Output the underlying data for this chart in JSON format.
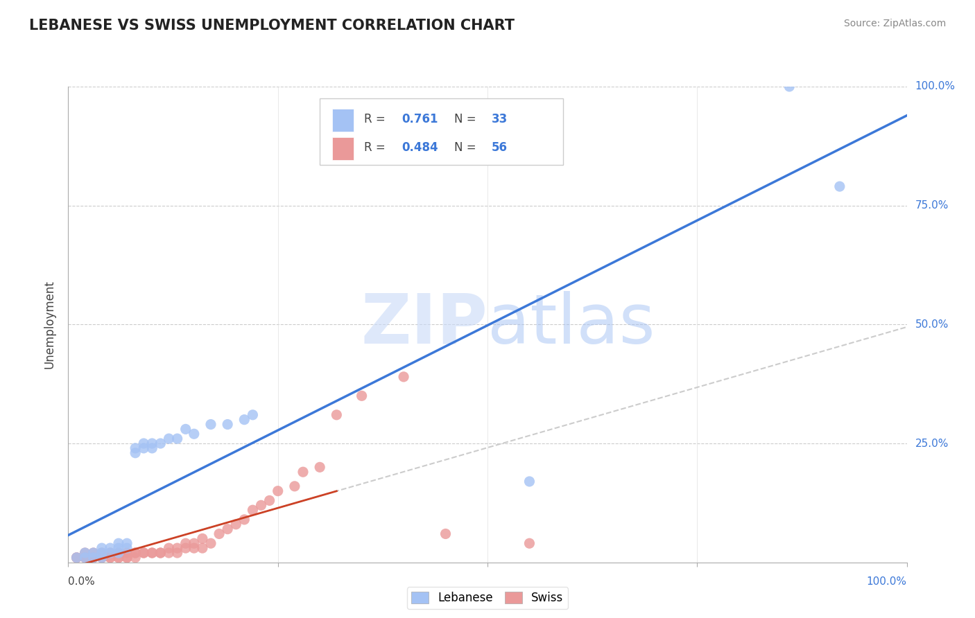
{
  "title": "LEBANESE VS SWISS UNEMPLOYMENT CORRELATION CHART",
  "source_text": "Source: ZipAtlas.com",
  "ylabel": "Unemployment",
  "xlim": [
    0,
    1
  ],
  "ylim": [
    0,
    1
  ],
  "lebanese_R": 0.761,
  "lebanese_N": 33,
  "swiss_R": 0.484,
  "swiss_N": 56,
  "blue_scatter_color": "#a4c2f4",
  "pink_scatter_color": "#ea9999",
  "blue_line_color": "#3c78d8",
  "pink_line_color": "#cc4125",
  "gray_dashed_color": "#cccccc",
  "watermark_text": "ZIPatlas",
  "watermark_color": "#c9daf8",
  "background_color": "#ffffff",
  "grid_color": "#cccccc",
  "legend_R_N_color": "#3c78d8",
  "lebanese_x": [
    0.01,
    0.02,
    0.02,
    0.03,
    0.03,
    0.04,
    0.04,
    0.04,
    0.05,
    0.05,
    0.06,
    0.06,
    0.06,
    0.07,
    0.07,
    0.08,
    0.08,
    0.09,
    0.09,
    0.1,
    0.1,
    0.11,
    0.12,
    0.13,
    0.14,
    0.15,
    0.17,
    0.19,
    0.21,
    0.22,
    0.55,
    0.86,
    0.92
  ],
  "lebanese_y": [
    0.01,
    0.01,
    0.02,
    0.01,
    0.02,
    0.01,
    0.02,
    0.03,
    0.02,
    0.03,
    0.02,
    0.03,
    0.04,
    0.03,
    0.04,
    0.23,
    0.24,
    0.24,
    0.25,
    0.24,
    0.25,
    0.25,
    0.26,
    0.26,
    0.28,
    0.27,
    0.29,
    0.29,
    0.3,
    0.31,
    0.17,
    1.0,
    0.79
  ],
  "swiss_x": [
    0.01,
    0.01,
    0.02,
    0.02,
    0.02,
    0.03,
    0.03,
    0.03,
    0.04,
    0.04,
    0.04,
    0.05,
    0.05,
    0.05,
    0.06,
    0.06,
    0.06,
    0.07,
    0.07,
    0.07,
    0.08,
    0.08,
    0.08,
    0.09,
    0.09,
    0.1,
    0.1,
    0.11,
    0.11,
    0.12,
    0.12,
    0.13,
    0.13,
    0.14,
    0.14,
    0.15,
    0.15,
    0.16,
    0.16,
    0.17,
    0.18,
    0.19,
    0.2,
    0.21,
    0.22,
    0.23,
    0.24,
    0.25,
    0.27,
    0.28,
    0.3,
    0.32,
    0.35,
    0.4,
    0.45,
    0.55
  ],
  "swiss_y": [
    0.01,
    0.01,
    0.01,
    0.01,
    0.02,
    0.01,
    0.01,
    0.02,
    0.01,
    0.01,
    0.02,
    0.01,
    0.01,
    0.02,
    0.01,
    0.01,
    0.02,
    0.01,
    0.01,
    0.02,
    0.01,
    0.02,
    0.02,
    0.02,
    0.02,
    0.02,
    0.02,
    0.02,
    0.02,
    0.02,
    0.03,
    0.02,
    0.03,
    0.03,
    0.04,
    0.03,
    0.04,
    0.03,
    0.05,
    0.04,
    0.06,
    0.07,
    0.08,
    0.09,
    0.11,
    0.12,
    0.13,
    0.15,
    0.16,
    0.19,
    0.2,
    0.31,
    0.35,
    0.39,
    0.06,
    0.04
  ]
}
